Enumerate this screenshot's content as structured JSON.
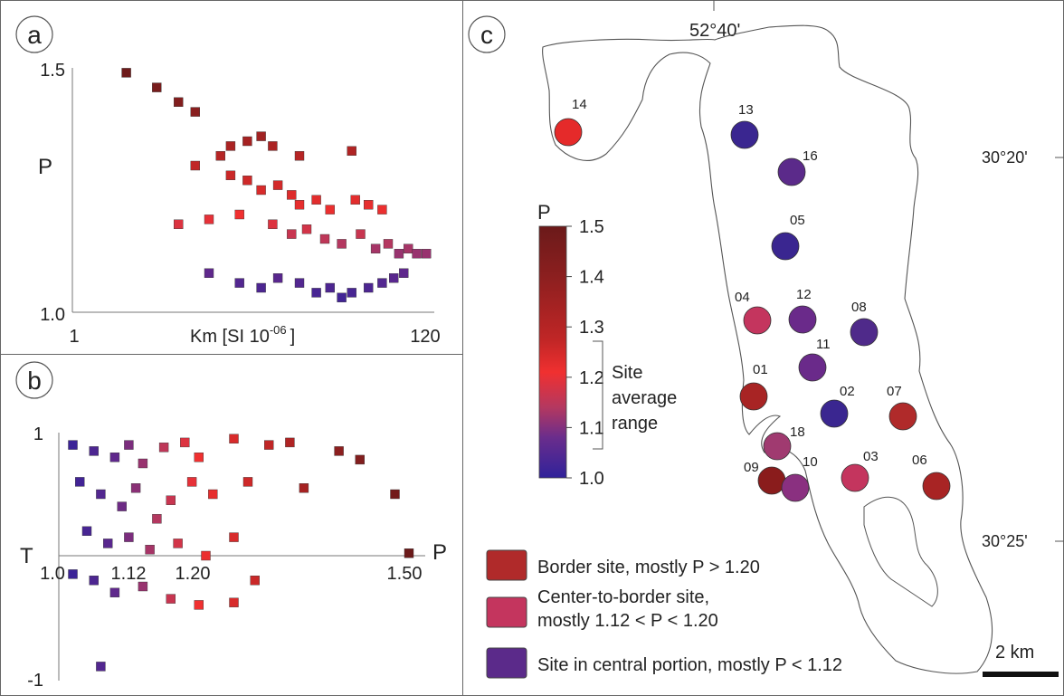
{
  "panels": {
    "a": {
      "letter": "a",
      "ylabel": "P",
      "xlabel": "Km [SI 10",
      "xlabel_sup": "-06",
      "xlabel_end": "]",
      "yticks": [
        "1.5",
        "1.0"
      ],
      "xticks": [
        "1",
        "120"
      ]
    },
    "b": {
      "letter": "b",
      "ylabel": "T",
      "xlabel": "P",
      "yticks": [
        "1",
        "-1"
      ],
      "xticks": [
        "1.0",
        "1.12",
        "1.20",
        "1.50"
      ]
    },
    "c": {
      "letter": "c",
      "lon_label": "52°40'",
      "lat_top": "30°20'",
      "lat_bottom": "30°25'",
      "scalebar": "2 km"
    }
  },
  "colorbar": {
    "title": "P",
    "ticks": [
      "1.5",
      "1.4",
      "1.3",
      "1.2",
      "1.1",
      "1.0"
    ],
    "bracket_label": [
      "Site",
      "average",
      "range"
    ],
    "colors": [
      "#6b1a1a",
      "#8c1f1f",
      "#c02626",
      "#f03030",
      "#d33a4a",
      "#7a3a8c",
      "#30229a"
    ]
  },
  "legend": [
    {
      "color": "#b02a2a",
      "lines": [
        "Border site, mostly P > 1.20"
      ]
    },
    {
      "color": "#c4355e",
      "lines": [
        "Center-to-border site,",
        "mostly 1.12 < P < 1.20"
      ]
    },
    {
      "color": "#5b2a8a",
      "lines": [
        "Site in central portion, mostly P < 1.12"
      ]
    }
  ],
  "colors": {
    "border": "#b02a2a",
    "center_border": "#c4355e",
    "central": "#5b2a8a",
    "red_bright": "#e52a2a",
    "blue": "#3a2690",
    "dark_red": "#8a1c1c"
  },
  "sites": [
    {
      "id": "14",
      "P": 1.22,
      "color": "#e52a2a"
    },
    {
      "id": "13",
      "P": 1.06,
      "color": "#3a2690"
    },
    {
      "id": "16",
      "P": 1.1,
      "color": "#5b2a8a"
    },
    {
      "id": "05",
      "P": 1.06,
      "color": "#3a2690"
    },
    {
      "id": "04",
      "P": 1.16,
      "color": "#c4355e"
    },
    {
      "id": "12",
      "P": 1.11,
      "color": "#6a2a8a"
    },
    {
      "id": "08",
      "P": 1.09,
      "color": "#4f2a8a"
    },
    {
      "id": "11",
      "P": 1.11,
      "color": "#6a2a8a"
    },
    {
      "id": "01",
      "P": 1.3,
      "color": "#a82424"
    },
    {
      "id": "02",
      "P": 1.05,
      "color": "#3a2690"
    },
    {
      "id": "07",
      "P": 1.28,
      "color": "#b02a2a"
    },
    {
      "id": "18",
      "P": 1.14,
      "color": "#a03a70"
    },
    {
      "id": "09",
      "P": 1.35,
      "color": "#8a1c1c"
    },
    {
      "id": "10",
      "P": 1.13,
      "color": "#8a3080"
    },
    {
      "id": "03",
      "P": 1.16,
      "color": "#c4355e"
    },
    {
      "id": "06",
      "P": 1.3,
      "color": "#a82424"
    }
  ],
  "chart_data": [
    {
      "type": "scatter",
      "panel": "a",
      "xlabel": "Km [SI 10^-06]",
      "ylabel": "P",
      "xlim": [
        1,
        120
      ],
      "ylim": [
        1.0,
        1.5
      ],
      "color_by": "P",
      "note_points": "approx. 400 specimen points",
      "points": [
        [
          2,
          1.49
        ],
        [
          3,
          1.46
        ],
        [
          4,
          1.43
        ],
        [
          5,
          1.41
        ],
        [
          7,
          1.32
        ],
        [
          8,
          1.34
        ],
        [
          10,
          1.35
        ],
        [
          12,
          1.36
        ],
        [
          14,
          1.34
        ],
        [
          20,
          1.32
        ],
        [
          40,
          1.33
        ],
        [
          5,
          1.3
        ],
        [
          8,
          1.28
        ],
        [
          10,
          1.27
        ],
        [
          12,
          1.25
        ],
        [
          15,
          1.26
        ],
        [
          18,
          1.24
        ],
        [
          20,
          1.22
        ],
        [
          25,
          1.23
        ],
        [
          30,
          1.21
        ],
        [
          42,
          1.23
        ],
        [
          50,
          1.22
        ],
        [
          60,
          1.21
        ],
        [
          4,
          1.18
        ],
        [
          6,
          1.19
        ],
        [
          9,
          1.2
        ],
        [
          14,
          1.18
        ],
        [
          18,
          1.16
        ],
        [
          22,
          1.17
        ],
        [
          28,
          1.15
        ],
        [
          35,
          1.14
        ],
        [
          45,
          1.16
        ],
        [
          55,
          1.13
        ],
        [
          65,
          1.14
        ],
        [
          75,
          1.12
        ],
        [
          85,
          1.13
        ],
        [
          95,
          1.12
        ],
        [
          108,
          1.12
        ],
        [
          6,
          1.08
        ],
        [
          9,
          1.06
        ],
        [
          12,
          1.05
        ],
        [
          15,
          1.07
        ],
        [
          20,
          1.06
        ],
        [
          25,
          1.04
        ],
        [
          30,
          1.05
        ],
        [
          35,
          1.03
        ],
        [
          40,
          1.04
        ],
        [
          50,
          1.05
        ],
        [
          60,
          1.06
        ],
        [
          70,
          1.07
        ],
        [
          80,
          1.08
        ]
      ]
    },
    {
      "type": "scatter",
      "panel": "b",
      "xlabel": "P",
      "ylabel": "T",
      "xlim": [
        1.0,
        1.5
      ],
      "ylim": [
        -1,
        1
      ],
      "color_by": "P",
      "note_points": "approx. 400 specimen points",
      "points": [
        [
          1.02,
          0.9
        ],
        [
          1.05,
          0.85
        ],
        [
          1.08,
          0.8
        ],
        [
          1.1,
          0.9
        ],
        [
          1.12,
          0.75
        ],
        [
          1.15,
          0.88
        ],
        [
          1.18,
          0.92
        ],
        [
          1.2,
          0.8
        ],
        [
          1.25,
          0.95
        ],
        [
          1.3,
          0.9
        ],
        [
          1.33,
          0.92
        ],
        [
          1.4,
          0.85
        ],
        [
          1.43,
          0.78
        ],
        [
          1.03,
          0.6
        ],
        [
          1.06,
          0.5
        ],
        [
          1.09,
          0.4
        ],
        [
          1.11,
          0.55
        ],
        [
          1.14,
          0.3
        ],
        [
          1.16,
          0.45
        ],
        [
          1.19,
          0.6
        ],
        [
          1.22,
          0.5
        ],
        [
          1.27,
          0.6
        ],
        [
          1.35,
          0.55
        ],
        [
          1.48,
          0.5
        ],
        [
          1.04,
          0.2
        ],
        [
          1.07,
          0.1
        ],
        [
          1.1,
          0.15
        ],
        [
          1.13,
          0.05
        ],
        [
          1.17,
          0.1
        ],
        [
          1.21,
          0.0
        ],
        [
          1.25,
          0.15
        ],
        [
          1.02,
          -0.15
        ],
        [
          1.05,
          -0.2
        ],
        [
          1.08,
          -0.3
        ],
        [
          1.12,
          -0.25
        ],
        [
          1.16,
          -0.35
        ],
        [
          1.2,
          -0.4
        ],
        [
          1.25,
          -0.38
        ],
        [
          1.28,
          -0.2
        ],
        [
          1.5,
          0.02
        ],
        [
          1.06,
          -0.9
        ]
      ]
    }
  ]
}
